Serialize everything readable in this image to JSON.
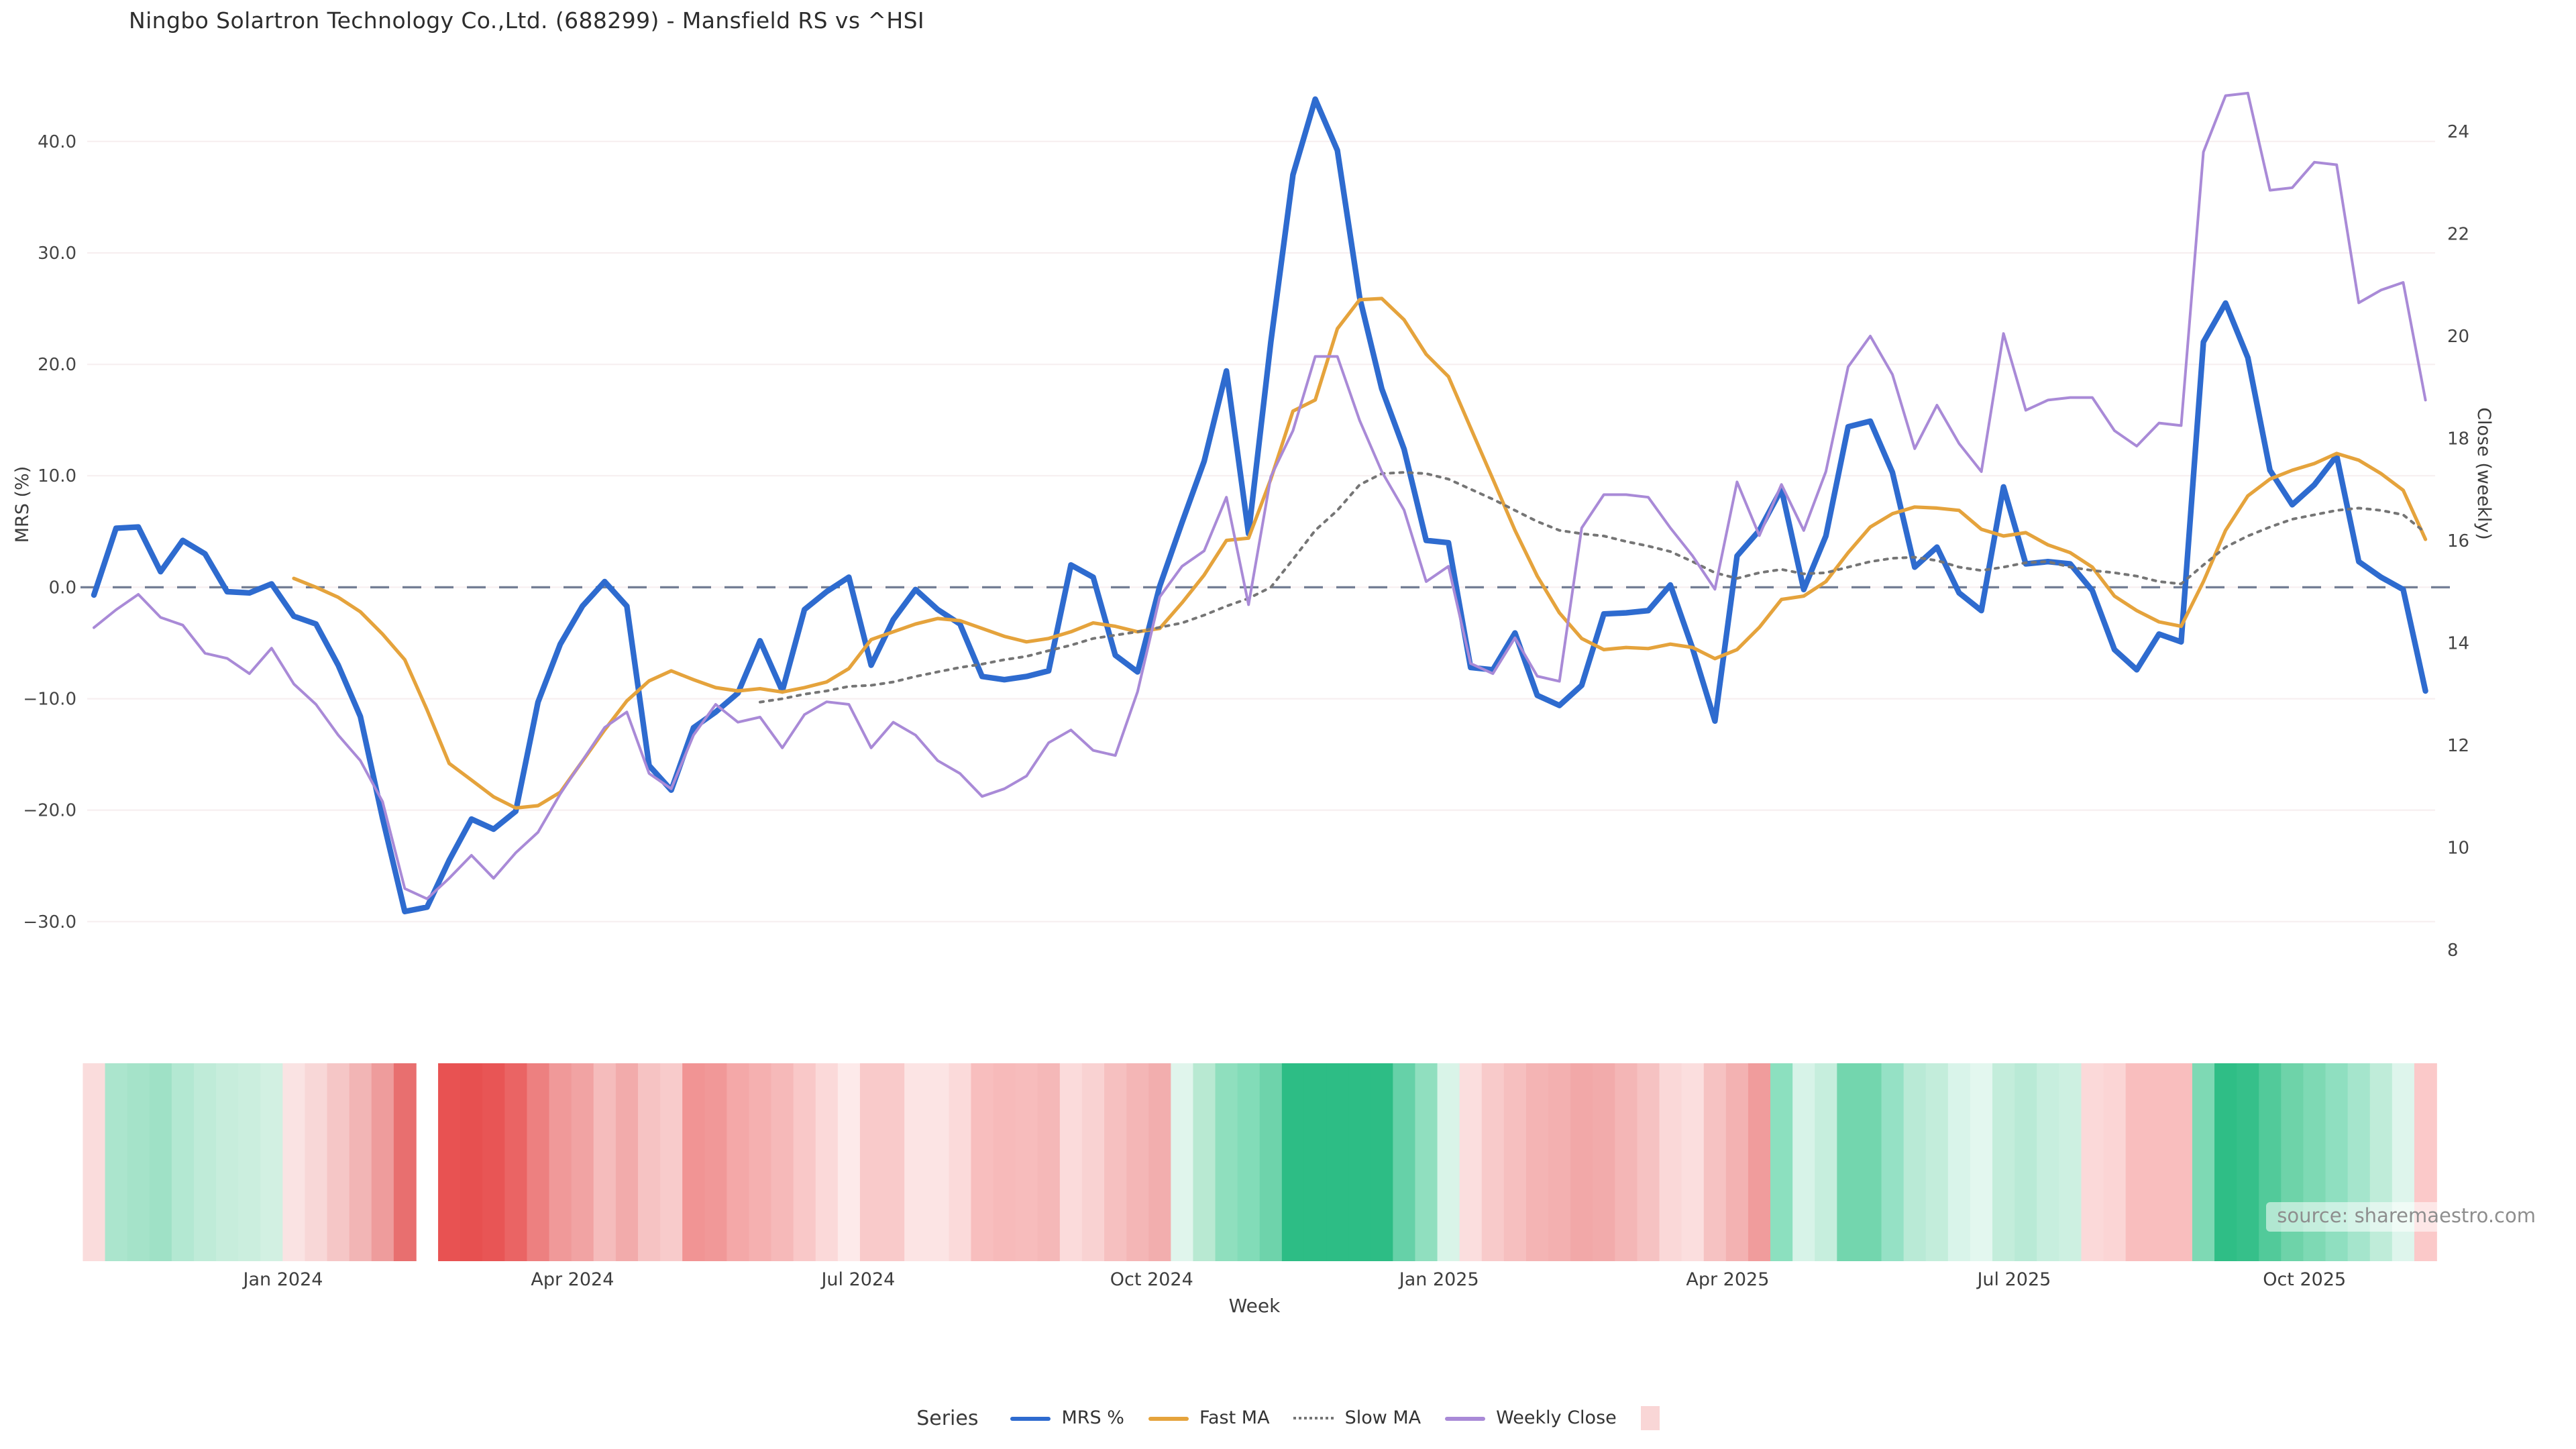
{
  "header": {
    "title": "Ningbo Solartron Technology Co.,Ltd. (688299) - Mansfield RS vs ^HSI"
  },
  "axes": {
    "left_title": "MRS (%)",
    "right_title": "Close (weekly)",
    "x_title": "Week"
  },
  "legend": {
    "label": "Series",
    "items": [
      {
        "label": "MRS %",
        "style": "solid",
        "color": "#2e6bcf"
      },
      {
        "label": "Fast MA",
        "style": "solid",
        "color": "#e5a33c"
      },
      {
        "label": "Slow MA",
        "style": "dotted",
        "color": "#757575"
      },
      {
        "label": "Weekly Close",
        "style": "solid",
        "color": "#a98ad7"
      }
    ],
    "heatmap_swatch_color": "#f9d6d6"
  },
  "source": {
    "text": "source: sharemaestro.com"
  },
  "chart_data": {
    "type": "line+heatmap",
    "x_unit": "week",
    "n_weeks": 106,
    "title": "Ningbo Solartron Technology Co.,Ltd. (688299) - Mansfield RS vs ^HSI",
    "left_axis": {
      "label": "MRS (%)",
      "min": -30,
      "max": 40,
      "ticks": [
        40,
        30,
        20,
        10,
        0,
        -10,
        -20,
        -30
      ],
      "tick_labels": [
        "40.0",
        "30.0",
        "20.0",
        "10.0",
        "0.0",
        "−10.0",
        "−20.0",
        "−30.0"
      ],
      "zero_line": true
    },
    "right_axis": {
      "label": "Close (weekly)",
      "min": 8,
      "max": 24,
      "ticks": [
        24,
        22,
        20,
        18,
        16,
        14,
        12,
        10,
        8
      ],
      "tick_labels": [
        "24",
        "22",
        "20",
        "18",
        "16",
        "14",
        "12",
        "10",
        "8"
      ]
    },
    "month_ticks": [
      {
        "label": "Jan 2024",
        "week": 9.52
      },
      {
        "label": "Apr 2024",
        "week": 22.55
      },
      {
        "label": "Jul 2024",
        "week": 35.42
      },
      {
        "label": "Oct 2024",
        "week": 48.64
      },
      {
        "label": "Jan 2025",
        "week": 61.58
      },
      {
        "label": "Apr 2025",
        "week": 74.58
      },
      {
        "label": "Jul 2025",
        "week": 87.48
      },
      {
        "label": "Oct 2025",
        "week": 100.55
      }
    ],
    "series": [
      {
        "name": "MRS %",
        "axis": "left",
        "color": "#2e6bcf",
        "style": "solid",
        "width": 4.2,
        "values": [
          -0.7,
          5.3,
          5.4,
          1.4,
          4.2,
          3.0,
          -0.4,
          -0.5,
          0.3,
          -2.6,
          -3.3,
          -7.0,
          -11.6,
          -20.7,
          -29.1,
          -28.7,
          -24.5,
          -20.8,
          -21.7,
          -20.1,
          -10.3,
          -5.1,
          -1.7,
          0.5,
          -1.7,
          -16.0,
          -18.2,
          -12.6,
          -11.2,
          -9.5,
          -4.8,
          -9.3,
          -2.0,
          -0.4,
          0.9,
          -7.0,
          -2.9,
          -0.2,
          -2.0,
          -3.3,
          -8.0,
          -8.3,
          -8.0,
          -7.5,
          2.0,
          0.9,
          -6.1,
          -7.6,
          0.1,
          5.8,
          11.3,
          19.4,
          4.8,
          22.0,
          37.0,
          43.8,
          39.2,
          26.0,
          17.8,
          12.4,
          4.2,
          4.0,
          -7.2,
          -7.4,
          -4.1,
          -9.7,
          -10.6,
          -8.8,
          -2.4,
          -2.3,
          -2.1,
          0.2,
          -5.5,
          -12.0,
          2.8,
          5.1,
          8.8,
          -0.2,
          4.6,
          14.4,
          14.9,
          10.3,
          1.8,
          3.6,
          -0.5,
          -2.1,
          9.0,
          2.1,
          2.3,
          2.1,
          -0.3,
          -5.6,
          -7.4,
          -4.2,
          -4.9,
          22.0,
          25.5,
          20.6,
          10.5,
          7.4,
          9.2,
          11.8,
          2.3,
          0.9,
          -0.2,
          -9.3
        ]
      },
      {
        "name": "Fast MA",
        "axis": "left",
        "color": "#e5a33c",
        "style": "solid",
        "width": 2.6,
        "values": [
          null,
          null,
          null,
          null,
          null,
          null,
          null,
          null,
          null,
          0.8,
          0.0,
          -0.9,
          -2.2,
          -4.2,
          -6.5,
          -11.0,
          -15.8,
          -17.3,
          -18.8,
          -19.8,
          -19.6,
          -18.4,
          -15.6,
          -12.8,
          -10.2,
          -8.4,
          -7.5,
          -8.3,
          -9.0,
          -9.3,
          -9.1,
          -9.4,
          -9.0,
          -8.5,
          -7.3,
          -4.7,
          -4.0,
          -3.3,
          -2.8,
          -3.0,
          -3.7,
          -4.4,
          -4.9,
          -4.6,
          -4.0,
          -3.2,
          -3.5,
          -4.0,
          -3.7,
          -1.4,
          1.1,
          4.2,
          4.4,
          9.7,
          15.8,
          16.8,
          23.2,
          25.8,
          25.9,
          24.0,
          20.9,
          18.9,
          14.3,
          9.7,
          5.1,
          1.0,
          -2.3,
          -4.6,
          -5.6,
          -5.4,
          -5.5,
          -5.1,
          -5.4,
          -6.4,
          -5.6,
          -3.6,
          -1.1,
          -0.8,
          0.5,
          3.1,
          5.4,
          6.6,
          7.2,
          7.1,
          6.9,
          5.2,
          4.6,
          4.9,
          3.8,
          3.1,
          1.8,
          -0.8,
          -2.1,
          -3.1,
          -3.5,
          0.5,
          5.1,
          8.2,
          9.7,
          10.5,
          11.1,
          12.0,
          11.4,
          10.2,
          8.7,
          4.3
        ]
      },
      {
        "name": "Slow MA",
        "axis": "left",
        "color": "#757575",
        "style": "dotted",
        "width": 2.0,
        "values": [
          null,
          null,
          null,
          null,
          null,
          null,
          null,
          null,
          null,
          null,
          null,
          null,
          null,
          null,
          null,
          null,
          null,
          null,
          null,
          null,
          null,
          null,
          null,
          null,
          null,
          null,
          null,
          null,
          null,
          null,
          -10.3,
          -10.0,
          -9.6,
          -9.3,
          -8.9,
          -8.8,
          -8.5,
          -8.0,
          -7.6,
          -7.2,
          -6.9,
          -6.5,
          -6.2,
          -5.7,
          -5.2,
          -4.6,
          -4.3,
          -4.0,
          -3.6,
          -3.2,
          -2.5,
          -1.7,
          -1.0,
          0.0,
          2.5,
          5.1,
          6.9,
          9.2,
          10.2,
          10.3,
          10.2,
          9.7,
          8.8,
          7.9,
          6.9,
          5.9,
          5.1,
          4.8,
          4.6,
          4.1,
          3.7,
          3.2,
          2.3,
          1.3,
          0.8,
          1.3,
          1.6,
          1.2,
          1.3,
          1.8,
          2.3,
          2.6,
          2.7,
          2.4,
          1.8,
          1.5,
          1.8,
          2.2,
          2.3,
          1.8,
          1.5,
          1.3,
          1.0,
          0.5,
          0.3,
          2.0,
          3.6,
          4.6,
          5.4,
          6.1,
          6.5,
          6.9,
          7.1,
          6.9,
          6.5,
          4.9
        ]
      },
      {
        "name": "Weekly Close",
        "axis": "right",
        "color": "#a98ad7",
        "style": "solid",
        "width": 2.0,
        "values": [
          14.3,
          14.65,
          14.95,
          14.5,
          14.35,
          13.8,
          13.7,
          13.4,
          13.9,
          13.2,
          12.8,
          12.2,
          11.7,
          10.9,
          9.2,
          9.0,
          9.4,
          9.85,
          9.4,
          9.9,
          10.3,
          11.05,
          11.7,
          12.35,
          12.65,
          11.45,
          11.15,
          12.2,
          12.8,
          12.45,
          12.55,
          11.95,
          12.6,
          12.85,
          12.8,
          11.95,
          12.45,
          12.2,
          11.7,
          11.45,
          11.0,
          11.15,
          11.4,
          12.05,
          12.3,
          11.9,
          11.8,
          13.05,
          14.9,
          15.5,
          15.8,
          16.85,
          14.75,
          17.25,
          18.15,
          19.6,
          19.6,
          18.35,
          17.35,
          16.6,
          15.2,
          15.5,
          13.6,
          13.4,
          14.1,
          13.35,
          13.25,
          16.25,
          16.9,
          16.9,
          16.85,
          16.25,
          15.7,
          15.05,
          17.15,
          16.1,
          17.1,
          16.2,
          17.35,
          19.4,
          20.0,
          19.25,
          17.8,
          18.65,
          17.9,
          17.35,
          20.05,
          18.55,
          18.75,
          18.8,
          18.8,
          18.15,
          17.85,
          18.3,
          18.25,
          23.6,
          24.7,
          24.75,
          22.85,
          22.9,
          23.4,
          23.35,
          20.65,
          20.9,
          21.05,
          18.75
        ]
      }
    ],
    "heatmap": {
      "name": "weekly heat strip",
      "cell_colors": [
        "#fadcdc",
        "#abe5cd",
        "#a5e3c9",
        "#9fe1c6",
        "#b3e8d2",
        "#bfebd8",
        "#c7eddc",
        "#cbeede",
        "#d2f0e2",
        "#fae3e3",
        "#f8d7d7",
        "#f5c6c6",
        "#f2b5b5",
        "#ee9c9c",
        "#e86f6f",
        null,
        "#e85252",
        "#e75050",
        "#e85555",
        "#ea6464",
        "#ed8080",
        "#f09999",
        "#f1a3a3",
        "#f5bcbc",
        "#f2abab",
        "#f6c3c3",
        "#f8cbcb",
        "#f19494",
        "#f19898",
        "#f4a8a8",
        "#f5b0b0",
        "#f6b9b9",
        "#f9c8c8",
        "#fbd9d9",
        "#fdeaea",
        "#f9caca",
        "#f9caca",
        "#fce4e4",
        "#fce4e4",
        "#fbdada",
        "#f8bebe",
        "#f7baba",
        "#f7bcbc",
        "#f5b8b8",
        "#fbdbdb",
        "#f9d2d2",
        "#f6c0c0",
        "#f4b6b6",
        "#f2aeae",
        "#e0f5ec",
        "#b8e9d2",
        "#8fdfbe",
        "#82dcb8",
        "#6ed3ab",
        "#2dbd85",
        "#2dbd85",
        "#2dbd85",
        "#2dbd85",
        "#2dbd85",
        "#66d1a8",
        "#90dfbf",
        "#d9f4e8",
        "#fbdede",
        "#f8caca",
        "#f6bfbf",
        "#f4b4b4",
        "#f3b0b0",
        "#f2a8a8",
        "#f2abab",
        "#f4b6b6",
        "#f6c2c2",
        "#fad8d8",
        "#fbdede",
        "#f6c2c2",
        "#f3b2b2",
        "#f09c9c",
        "#8ce0bf",
        "#d7f3e8",
        "#c6eedd",
        "#73d6ae",
        "#73d6ae",
        "#95e1c5",
        "#b9ead6",
        "#c3eddb",
        "#d9f4ea",
        "#e3f7ef",
        "#c3eddb",
        "#b9ead6",
        "#c7eede",
        "#cdf0e1",
        "#fbd9d9",
        "#fbd5d5",
        "#f9bebe",
        "#f9bebe",
        "#f9bebe",
        "#7ed9b4",
        "#2fbe86",
        "#36c08a",
        "#52ca9a",
        "#6ed3a9",
        "#7ed9b4",
        "#8fdfc0",
        "#a5e5cc",
        "#bfecd9",
        "#def5ec",
        "#fbc9c9"
      ]
    },
    "style": {
      "grid_color": "#f7eff0",
      "zero_line_color": "#5d6b85",
      "tick_label_color": "#454545",
      "background": "#ffffff"
    }
  }
}
